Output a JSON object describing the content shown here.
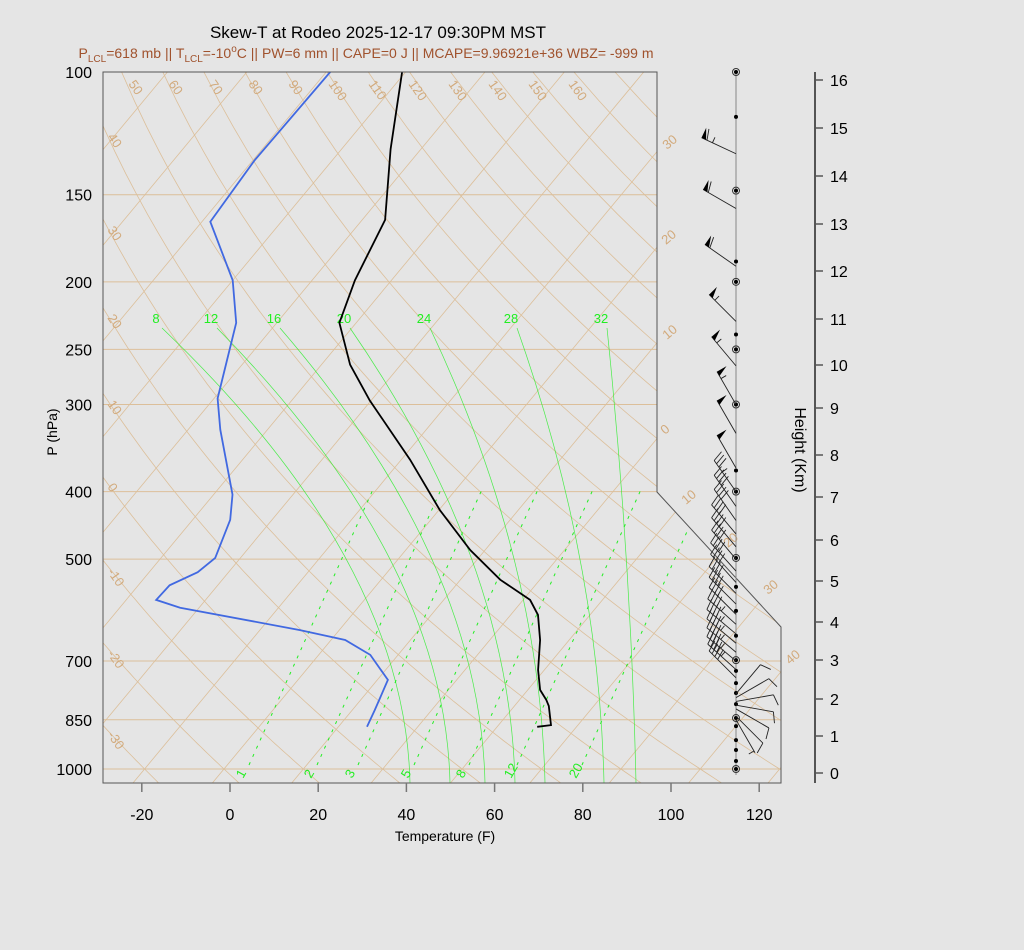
{
  "title": "Skew-T at Rodeo 2025-12-17 09:30PM MST",
  "subtitle": {
    "segments": [
      {
        "text": "P"
      },
      {
        "text": "LCL",
        "sub": true
      },
      {
        "text": "=618 mb || T"
      },
      {
        "text": "LCL",
        "sub": true
      },
      {
        "text": "=-10"
      },
      {
        "text": "o",
        "sup": true
      },
      {
        "text": "C || PW=6 mm || CAPE=0 J || MCAPE=9.96921e+36 WBZ= -999 m"
      }
    ]
  },
  "colors": {
    "background": "#e5e5e5",
    "subtitle": "#a0522d",
    "grid": "#dcbf9a",
    "grid_label": "#d2aa7c",
    "moist_adiabat": "#22ee22",
    "temperature": "#000000",
    "dewpoint": "#4169e1",
    "wind": "#000000"
  },
  "chart_data": {
    "type": "line",
    "title": "Skew-T at Rodeo 2025-12-17 09:30PM MST",
    "xlabel": "Temperature (F)",
    "ylabel": "P (hPa)",
    "y2label": "Height (Km)",
    "y_scale": "log",
    "ylim": [
      1050,
      100
    ],
    "x_ticks": [
      -20,
      0,
      20,
      40,
      60,
      80,
      100,
      120
    ],
    "y_ticks": [
      100,
      150,
      200,
      250,
      300,
      400,
      500,
      700,
      850,
      1000
    ],
    "y2_ticks": [
      0,
      1,
      2,
      3,
      4,
      5,
      6,
      7,
      8,
      9,
      10,
      11,
      12,
      13,
      14,
      15,
      16
    ],
    "grid": true,
    "isotherm_labels_c": [
      -30,
      -20,
      -10,
      0,
      10,
      20,
      30,
      40
    ],
    "isotherm_label_text": [
      "30",
      "20",
      "10",
      "0",
      "10",
      "20",
      "30",
      "40"
    ],
    "dry_adiabat_top_labels": [
      "50",
      "60",
      "70",
      "80",
      "90",
      "100",
      "110",
      "120",
      "130",
      "140",
      "150",
      "160"
    ],
    "dry_adiabat_left_labels": [
      "40",
      "30",
      "20",
      "10",
      "0",
      "-10",
      "-20",
      "-30"
    ],
    "moist_adiabat_labels": [
      "8",
      "12",
      "16",
      "20",
      "24",
      "28",
      "32"
    ],
    "mixing_ratio_labels": [
      "1",
      "2",
      "3",
      "5",
      "8",
      "12",
      "20"
    ],
    "series": [
      {
        "name": "temperature",
        "x_unit": "F",
        "points": [
          [
            870,
            59.1
          ],
          [
            865,
            61.9
          ],
          [
            812,
            57.8
          ],
          [
            796,
            56.1
          ],
          [
            770,
            52.8
          ],
          [
            721,
            48.6
          ],
          [
            653,
            43.4
          ],
          [
            601,
            38.2
          ],
          [
            572,
            33.6
          ],
          [
            535,
            23.0
          ],
          [
            485,
            10.6
          ],
          [
            425,
            -3.8
          ],
          [
            360,
            -20.0
          ],
          [
            296,
            -40.3
          ],
          [
            263,
            -51.5
          ],
          [
            229,
            -61.8
          ],
          [
            199,
            -66.3
          ],
          [
            163,
            -70.8
          ],
          [
            129,
            -82.9
          ],
          [
            100,
            -94.8
          ]
        ]
      },
      {
        "name": "dewpoint",
        "x_unit": "F",
        "points": [
          [
            870,
            20.5
          ],
          [
            823,
            19.1
          ],
          [
            745,
            16.4
          ],
          [
            686,
            7.7
          ],
          [
            653,
            -0.8
          ],
          [
            632,
            -12.9
          ],
          [
            587,
            -44.3
          ],
          [
            572,
            -51.2
          ],
          [
            545,
            -50.9
          ],
          [
            522,
            -47.0
          ],
          [
            498,
            -45.7
          ],
          [
            439,
            -49.5
          ],
          [
            404,
            -53.7
          ],
          [
            326,
            -68.7
          ],
          [
            294,
            -75.2
          ],
          [
            268,
            -78.9
          ],
          [
            229,
            -85.2
          ],
          [
            199,
            -94.0
          ],
          [
            164,
            -110.1
          ],
          [
            134,
            -111.6
          ],
          [
            100,
            -111.1
          ]
        ]
      }
    ],
    "wind_levels_hpa": [
      {
        "p": 100,
        "calm": true
      },
      {
        "p": 116
      },
      {
        "p": 148,
        "calm": true
      },
      {
        "p": 187
      },
      {
        "p": 200,
        "calm": true
      },
      {
        "p": 238
      },
      {
        "p": 250,
        "calm": true
      },
      {
        "p": 300,
        "calm": true
      },
      {
        "p": 373
      },
      {
        "p": 400,
        "calm": true
      },
      {
        "p": 498,
        "calm": true
      },
      {
        "p": 548
      },
      {
        "p": 593
      },
      {
        "p": 644
      },
      {
        "p": 698,
        "calm": true
      },
      {
        "p": 723
      },
      {
        "p": 753
      },
      {
        "p": 778
      },
      {
        "p": 807
      },
      {
        "p": 845,
        "calm": true
      },
      {
        "p": 868
      },
      {
        "p": 909
      },
      {
        "p": 939
      },
      {
        "p": 974
      },
      {
        "p": 1000,
        "calm": true
      }
    ],
    "winds": [
      {
        "p": 131,
        "dir": 295,
        "spd": 65
      },
      {
        "p": 157,
        "dir": 300,
        "spd": 60
      },
      {
        "p": 190,
        "dir": 305,
        "spd": 60
      },
      {
        "p": 228,
        "dir": 315,
        "spd": 55
      },
      {
        "p": 264,
        "dir": 320,
        "spd": 55
      },
      {
        "p": 300,
        "dir": 330,
        "spd": 55
      },
      {
        "p": 330,
        "dir": 330,
        "spd": 50
      },
      {
        "p": 370,
        "dir": 330,
        "spd": 50
      },
      {
        "p": 400,
        "dir": 325,
        "spd": 35
      },
      {
        "p": 420,
        "dir": 325,
        "spd": 40
      },
      {
        "p": 440,
        "dir": 325,
        "spd": 40
      },
      {
        "p": 460,
        "dir": 320,
        "spd": 40
      },
      {
        "p": 480,
        "dir": 320,
        "spd": 40
      },
      {
        "p": 500,
        "dir": 320,
        "spd": 40
      },
      {
        "p": 520,
        "dir": 318,
        "spd": 40
      },
      {
        "p": 540,
        "dir": 318,
        "spd": 40
      },
      {
        "p": 560,
        "dir": 315,
        "spd": 40
      },
      {
        "p": 580,
        "dir": 315,
        "spd": 40
      },
      {
        "p": 600,
        "dir": 315,
        "spd": 40
      },
      {
        "p": 620,
        "dir": 312,
        "spd": 45
      },
      {
        "p": 640,
        "dir": 310,
        "spd": 45
      },
      {
        "p": 660,
        "dir": 310,
        "spd": 45
      },
      {
        "p": 680,
        "dir": 310,
        "spd": 45
      },
      {
        "p": 700,
        "dir": 310,
        "spd": 45
      },
      {
        "p": 720,
        "dir": 312,
        "spd": 45
      },
      {
        "p": 740,
        "dir": 315,
        "spd": 40
      },
      {
        "p": 780,
        "dir": 40,
        "spd": 10
      },
      {
        "p": 790,
        "dir": 60,
        "spd": 10
      },
      {
        "p": 800,
        "dir": 80,
        "spd": 10
      },
      {
        "p": 810,
        "dir": 100,
        "spd": 10
      },
      {
        "p": 820,
        "dir": 120,
        "spd": 10
      },
      {
        "p": 840,
        "dir": 135,
        "spd": 10
      },
      {
        "p": 850,
        "dir": 150,
        "spd": 5
      }
    ]
  }
}
